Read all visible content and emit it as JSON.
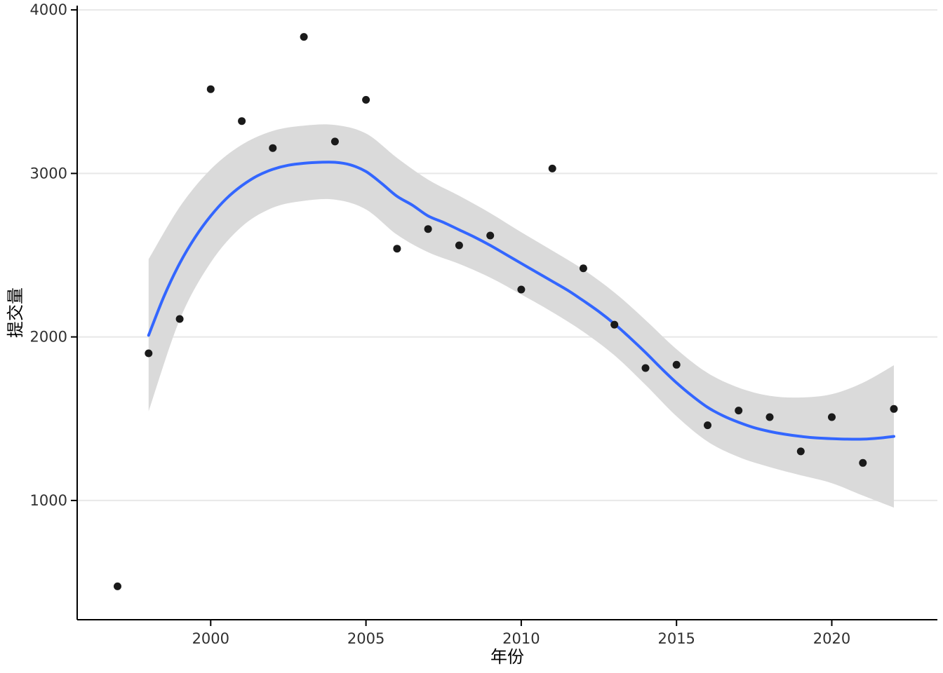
{
  "chart_data": {
    "type": "scatter",
    "title": "",
    "xlabel": "年份",
    "ylabel": "提交量",
    "legend": "none",
    "grid": "horizontal-only",
    "x_ticks": [
      2000,
      2005,
      2010,
      2015,
      2020
    ],
    "y_ticks": [
      1000,
      2000,
      3000,
      4000
    ],
    "x_range": [
      1995.7,
      2023.4
    ],
    "y_range": [
      271,
      4026
    ],
    "points": [
      [
        1997,
        475
      ],
      [
        1998,
        1900
      ],
      [
        1999,
        2110
      ],
      [
        2000,
        3515
      ],
      [
        2001,
        3320
      ],
      [
        2002,
        3155
      ],
      [
        2003,
        3835
      ],
      [
        2004,
        3195
      ],
      [
        2005,
        3450
      ],
      [
        2006,
        2540
      ],
      [
        2007,
        2660
      ],
      [
        2008,
        2560
      ],
      [
        2009,
        2620
      ],
      [
        2010,
        2290
      ],
      [
        2011,
        3030
      ],
      [
        2012,
        2420
      ],
      [
        2013,
        2075
      ],
      [
        2014,
        1810
      ],
      [
        2015,
        1830
      ],
      [
        2016,
        1460
      ],
      [
        2017,
        1550
      ],
      [
        2018,
        1510
      ],
      [
        2019,
        1300
      ],
      [
        2020,
        1510
      ],
      [
        2021,
        1230
      ],
      [
        2022,
        1560
      ]
    ],
    "smooth": [
      [
        1998,
        2010
      ],
      [
        1998.5,
        2250
      ],
      [
        1999,
        2450
      ],
      [
        1999.5,
        2610
      ],
      [
        2000,
        2740
      ],
      [
        2000.5,
        2845
      ],
      [
        2001,
        2925
      ],
      [
        2001.5,
        2985
      ],
      [
        2002,
        3025
      ],
      [
        2002.5,
        3050
      ],
      [
        2003,
        3062
      ],
      [
        2003.5,
        3068
      ],
      [
        2004,
        3068
      ],
      [
        2004.5,
        3052
      ],
      [
        2005,
        3012
      ],
      [
        2005.5,
        2940
      ],
      [
        2006,
        2860
      ],
      [
        2006.5,
        2805
      ],
      [
        2007,
        2740
      ],
      [
        2007.5,
        2700
      ],
      [
        2008,
        2655
      ],
      [
        2008.5,
        2610
      ],
      [
        2009,
        2560
      ],
      [
        2009.5,
        2505
      ],
      [
        2010,
        2450
      ],
      [
        2010.5,
        2395
      ],
      [
        2011,
        2340
      ],
      [
        2011.5,
        2285
      ],
      [
        2012,
        2222
      ],
      [
        2012.5,
        2155
      ],
      [
        2013,
        2080
      ],
      [
        2013.5,
        1995
      ],
      [
        2014,
        1905
      ],
      [
        2014.5,
        1810
      ],
      [
        2015,
        1720
      ],
      [
        2015.5,
        1640
      ],
      [
        2016,
        1570
      ],
      [
        2016.5,
        1518
      ],
      [
        2017,
        1478
      ],
      [
        2017.5,
        1445
      ],
      [
        2018,
        1422
      ],
      [
        2018.5,
        1405
      ],
      [
        2019,
        1392
      ],
      [
        2019.5,
        1383
      ],
      [
        2020,
        1378
      ],
      [
        2020.5,
        1375
      ],
      [
        2021,
        1375
      ],
      [
        2021.5,
        1381
      ],
      [
        2022,
        1392
      ]
    ],
    "ribbon": [
      [
        1998,
        1545,
        2475
      ],
      [
        1999,
        2105,
        2795
      ],
      [
        2000,
        2455,
        3025
      ],
      [
        2001,
        2675,
        3175
      ],
      [
        2002,
        2790,
        3260
      ],
      [
        2003,
        2832,
        3292
      ],
      [
        2004,
        2840,
        3296
      ],
      [
        2005,
        2780,
        3244
      ],
      [
        2006,
        2625,
        3095
      ],
      [
        2007,
        2518,
        2962
      ],
      [
        2008,
        2447,
        2863
      ],
      [
        2009,
        2363,
        2757
      ],
      [
        2010,
        2260,
        2640
      ],
      [
        2011,
        2152,
        2528
      ],
      [
        2012,
        2032,
        2412
      ],
      [
        2013,
        1888,
        2272
      ],
      [
        2014,
        1707,
        2103
      ],
      [
        2015,
        1515,
        1925
      ],
      [
        2016,
        1360,
        1780
      ],
      [
        2017,
        1266,
        1690
      ],
      [
        2018,
        1204,
        1640
      ],
      [
        2019,
        1154,
        1630
      ],
      [
        2020,
        1106,
        1650
      ],
      [
        2021,
        1030,
        1720
      ],
      [
        2022,
        957,
        1827
      ]
    ],
    "colors": {
      "point": "#1a1a1a",
      "line": "#3366ff",
      "ribbon": "#dadada",
      "grid": "#e8e8e8",
      "axis": "#000000",
      "text": "#303030"
    }
  }
}
